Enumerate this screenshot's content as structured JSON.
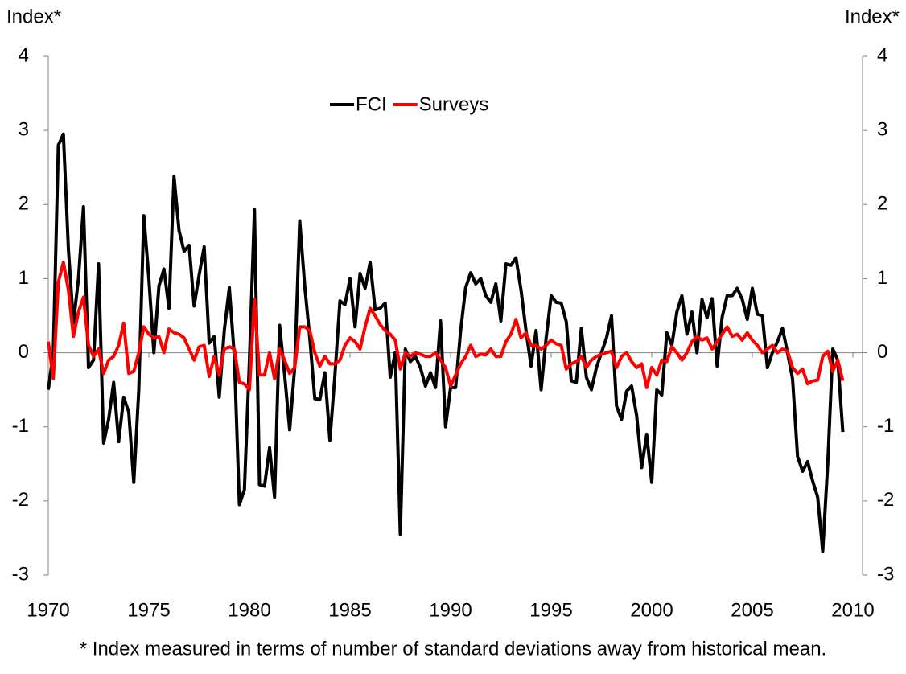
{
  "chart_data": {
    "type": "line",
    "y_label": "Index*",
    "y2_label": "Index*",
    "footnote": "* Index measured in terms of number of standard deviations away from historical mean.",
    "x": [
      1970,
      1970.25,
      1970.5,
      1970.75,
      1971,
      1971.25,
      1971.5,
      1971.75,
      1972,
      1972.25,
      1972.5,
      1972.75,
      1973,
      1973.25,
      1973.5,
      1973.75,
      1974,
      1974.25,
      1974.5,
      1974.75,
      1975,
      1975.25,
      1975.5,
      1975.75,
      1976,
      1976.25,
      1976.5,
      1976.75,
      1977,
      1977.25,
      1977.5,
      1977.75,
      1978,
      1978.25,
      1978.5,
      1978.75,
      1979,
      1979.25,
      1979.5,
      1979.75,
      1980,
      1980.25,
      1980.5,
      1980.75,
      1981,
      1981.25,
      1981.5,
      1981.75,
      1982,
      1982.25,
      1982.5,
      1982.75,
      1983,
      1983.25,
      1983.5,
      1983.75,
      1984,
      1984.25,
      1984.5,
      1984.75,
      1985,
      1985.25,
      1985.5,
      1985.75,
      1986,
      1986.25,
      1986.5,
      1986.75,
      1987,
      1987.25,
      1987.5,
      1987.75,
      1988,
      1988.25,
      1988.5,
      1988.75,
      1989,
      1989.25,
      1989.5,
      1989.75,
      1990,
      1990.25,
      1990.5,
      1990.75,
      1991,
      1991.25,
      1991.5,
      1991.75,
      1992,
      1992.25,
      1992.5,
      1992.75,
      1993,
      1993.25,
      1993.5,
      1993.75,
      1994,
      1994.25,
      1994.5,
      1994.75,
      1995,
      1995.25,
      1995.5,
      1995.75,
      1996,
      1996.25,
      1996.5,
      1996.75,
      1997,
      1997.25,
      1997.5,
      1997.75,
      1998,
      1998.25,
      1998.5,
      1998.75,
      1999,
      1999.25,
      1999.5,
      1999.75,
      2000,
      2000.25,
      2000.5,
      2000.75,
      2001,
      2001.25,
      2001.5,
      2001.75,
      2002,
      2002.25,
      2002.5,
      2002.75,
      2003,
      2003.25,
      2003.5,
      2003.75,
      2004,
      2004.25,
      2004.5,
      2004.75,
      2005,
      2005.25,
      2005.5,
      2005.75,
      2006,
      2006.25,
      2006.5,
      2006.75,
      2007,
      2007.25,
      2007.5,
      2007.75,
      2008,
      2008.25,
      2008.5,
      2008.75,
      2009,
      2009.25,
      2009.5
    ],
    "series": [
      {
        "name": "FCI",
        "color": "#000000",
        "values": [
          -0.5,
          0.0,
          2.8,
          2.95,
          1.4,
          0.4,
          1.0,
          1.97,
          -0.2,
          -0.1,
          1.2,
          -1.22,
          -0.9,
          -0.4,
          -1.2,
          -0.6,
          -0.8,
          -1.75,
          -0.5,
          1.85,
          1.0,
          0.0,
          0.9,
          1.13,
          0.6,
          2.38,
          1.65,
          1.37,
          1.45,
          0.63,
          1.05,
          1.43,
          0.13,
          0.22,
          -0.6,
          0.3,
          0.88,
          -0.05,
          -2.05,
          -1.85,
          -0.1,
          1.93,
          -1.78,
          -1.8,
          -1.28,
          -1.95,
          0.37,
          -0.3,
          -1.04,
          -0.2,
          1.78,
          0.9,
          0.2,
          -0.62,
          -0.63,
          -0.27,
          -1.18,
          -0.3,
          0.7,
          0.65,
          1.0,
          0.35,
          1.07,
          0.87,
          1.22,
          0.58,
          0.6,
          0.67,
          -0.33,
          0.0,
          -2.45,
          0.05,
          -0.12,
          -0.05,
          -0.2,
          -0.45,
          -0.27,
          -0.47,
          0.43,
          -1.0,
          -0.47,
          -0.47,
          0.3,
          0.88,
          1.08,
          0.93,
          1.0,
          0.77,
          0.68,
          0.93,
          0.43,
          1.2,
          1.18,
          1.28,
          0.85,
          0.3,
          -0.18,
          0.3,
          -0.5,
          0.2,
          0.77,
          0.68,
          0.67,
          0.42,
          -0.38,
          -0.4,
          0.33,
          -0.33,
          -0.5,
          -0.2,
          0.0,
          0.2,
          0.5,
          -0.72,
          -0.9,
          -0.52,
          -0.45,
          -0.85,
          -1.55,
          -1.1,
          -1.75,
          -0.5,
          -0.57,
          0.27,
          0.1,
          0.55,
          0.77,
          0.25,
          0.55,
          0.0,
          0.72,
          0.47,
          0.73,
          -0.18,
          0.48,
          0.77,
          0.77,
          0.87,
          0.72,
          0.45,
          0.87,
          0.52,
          0.5,
          -0.2,
          0.0,
          0.15,
          0.33,
          0.0,
          -0.35,
          -1.4,
          -1.6,
          -1.47,
          -1.73,
          -1.95,
          -2.68,
          -1.5,
          0.05,
          -0.1,
          -1.07
        ]
      },
      {
        "name": "Surveys",
        "color": "#ff0000",
        "values": [
          0.15,
          -0.35,
          0.95,
          1.22,
          0.85,
          0.22,
          0.55,
          0.75,
          0.1,
          -0.05,
          0.05,
          -0.28,
          -0.1,
          -0.05,
          0.1,
          0.4,
          -0.28,
          -0.25,
          0.0,
          0.35,
          0.25,
          0.2,
          0.22,
          0.0,
          0.32,
          0.27,
          0.25,
          0.2,
          0.05,
          -0.1,
          0.08,
          0.1,
          -0.32,
          -0.05,
          -0.3,
          0.05,
          0.08,
          0.05,
          -0.4,
          -0.42,
          -0.5,
          0.72,
          -0.3,
          -0.3,
          0.0,
          -0.35,
          0.05,
          -0.1,
          -0.28,
          -0.2,
          0.35,
          0.35,
          0.3,
          0.0,
          -0.18,
          -0.05,
          -0.15,
          -0.15,
          -0.1,
          0.1,
          0.2,
          0.15,
          0.05,
          0.35,
          0.6,
          0.5,
          0.38,
          0.3,
          0.25,
          0.17,
          -0.22,
          0.0,
          -0.05,
          0.0,
          -0.02,
          -0.05,
          -0.05,
          0.0,
          -0.1,
          -0.2,
          -0.45,
          -0.3,
          -0.15,
          -0.05,
          0.1,
          -0.05,
          -0.02,
          -0.03,
          0.05,
          -0.05,
          -0.05,
          0.15,
          0.25,
          0.45,
          0.2,
          0.27,
          0.1,
          0.1,
          0.05,
          0.1,
          0.17,
          0.12,
          0.1,
          -0.22,
          -0.15,
          -0.12,
          -0.05,
          -0.2,
          -0.1,
          -0.05,
          -0.02,
          0.0,
          0.02,
          -0.2,
          -0.05,
          0.0,
          -0.12,
          -0.2,
          -0.15,
          -0.47,
          -0.2,
          -0.3,
          -0.1,
          -0.12,
          0.08,
          0.0,
          -0.1,
          0.0,
          0.15,
          0.22,
          0.17,
          0.2,
          0.05,
          0.15,
          0.25,
          0.35,
          0.22,
          0.25,
          0.17,
          0.27,
          0.17,
          0.1,
          0.0,
          0.05,
          0.1,
          0.0,
          0.05,
          0.02,
          -0.2,
          -0.28,
          -0.22,
          -0.42,
          -0.38,
          -0.37,
          -0.05,
          0.02,
          -0.25,
          -0.1,
          -0.38
        ]
      }
    ],
    "xlim": [
      1970,
      2010
    ],
    "xticks": [
      1970,
      1975,
      1980,
      1985,
      1990,
      1995,
      2000,
      2005,
      2010
    ],
    "ylim": [
      -3,
      4
    ],
    "yticks": [
      -3,
      -2,
      -1,
      0,
      1,
      2,
      3,
      4
    ],
    "y2lim": [
      -3,
      4
    ],
    "y2ticks": [
      -3,
      -2,
      -1,
      0,
      1,
      2,
      3,
      4
    ]
  }
}
